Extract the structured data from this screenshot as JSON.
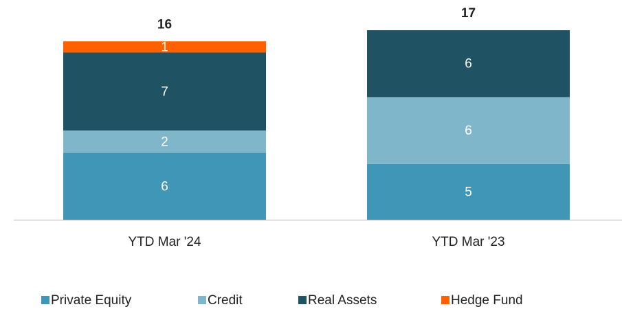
{
  "chart_data": {
    "type": "stacked_bar",
    "categories": [
      "YTD Mar '24",
      "YTD Mar '23"
    ],
    "series": [
      {
        "name": "Private Equity",
        "color": "#4096b6",
        "values": [
          6,
          5
        ]
      },
      {
        "name": "Credit",
        "color": "#80b6ca",
        "values": [
          2,
          6
        ]
      },
      {
        "name": "Real Assets",
        "color": "#1f5263",
        "values": [
          7,
          6
        ]
      },
      {
        "name": "Hedge Fund",
        "color": "#ff6000",
        "values": [
          1,
          null
        ]
      }
    ],
    "totals": [
      16,
      17
    ],
    "legend": "bottom"
  }
}
